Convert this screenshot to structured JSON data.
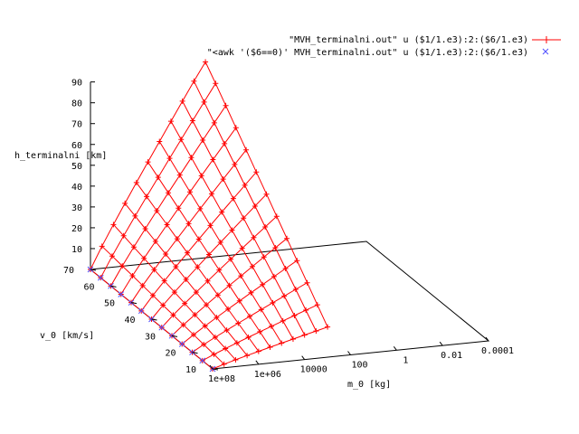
{
  "chart_data": {
    "type": "surface",
    "grid": false,
    "legend_position": "top-right",
    "axes": {
      "x": {
        "label": "m_0 [kg]",
        "scale": "log",
        "range": [
          0.0001,
          100000000
        ],
        "ticks": [
          "1e+08",
          "1e+06",
          "10000",
          "100",
          "1",
          "0.01",
          "0.0001"
        ]
      },
      "y": {
        "label": "v_0 [km/s]",
        "range": [
          10,
          70
        ],
        "ticks": [
          "10",
          "20",
          "30",
          "40",
          "50",
          "60",
          "70"
        ]
      },
      "z": {
        "label": "h_terminalni [km]",
        "range": [
          0,
          90
        ],
        "ticks": [
          "10",
          "20",
          "30",
          "40",
          "50",
          "60",
          "70",
          "80",
          "90"
        ]
      }
    },
    "series": [
      {
        "name": "\"MVH_terminalni.out\" u ($1/1.e3):2:($6/1.e3)",
        "color": "#ff0000",
        "marker": "plus",
        "style": "mesh"
      },
      {
        "name": "\"<awk '($6==0)' MVH_terminalni.out\" u ($1/1.e3):2:($6/1.e3)",
        "color": "#5050ff",
        "marker": "cross",
        "style": "points"
      }
    ],
    "surface": {
      "note_x_values_log10_kg": [
        8,
        7.5,
        7,
        6.5,
        6,
        5.5,
        5,
        4.5,
        4,
        3.5,
        3
      ],
      "y_values": [
        10,
        15,
        20,
        25,
        30,
        35,
        40,
        45,
        50,
        55,
        60,
        65,
        70
      ],
      "h_min": 0,
      "h_max": 94
    }
  }
}
